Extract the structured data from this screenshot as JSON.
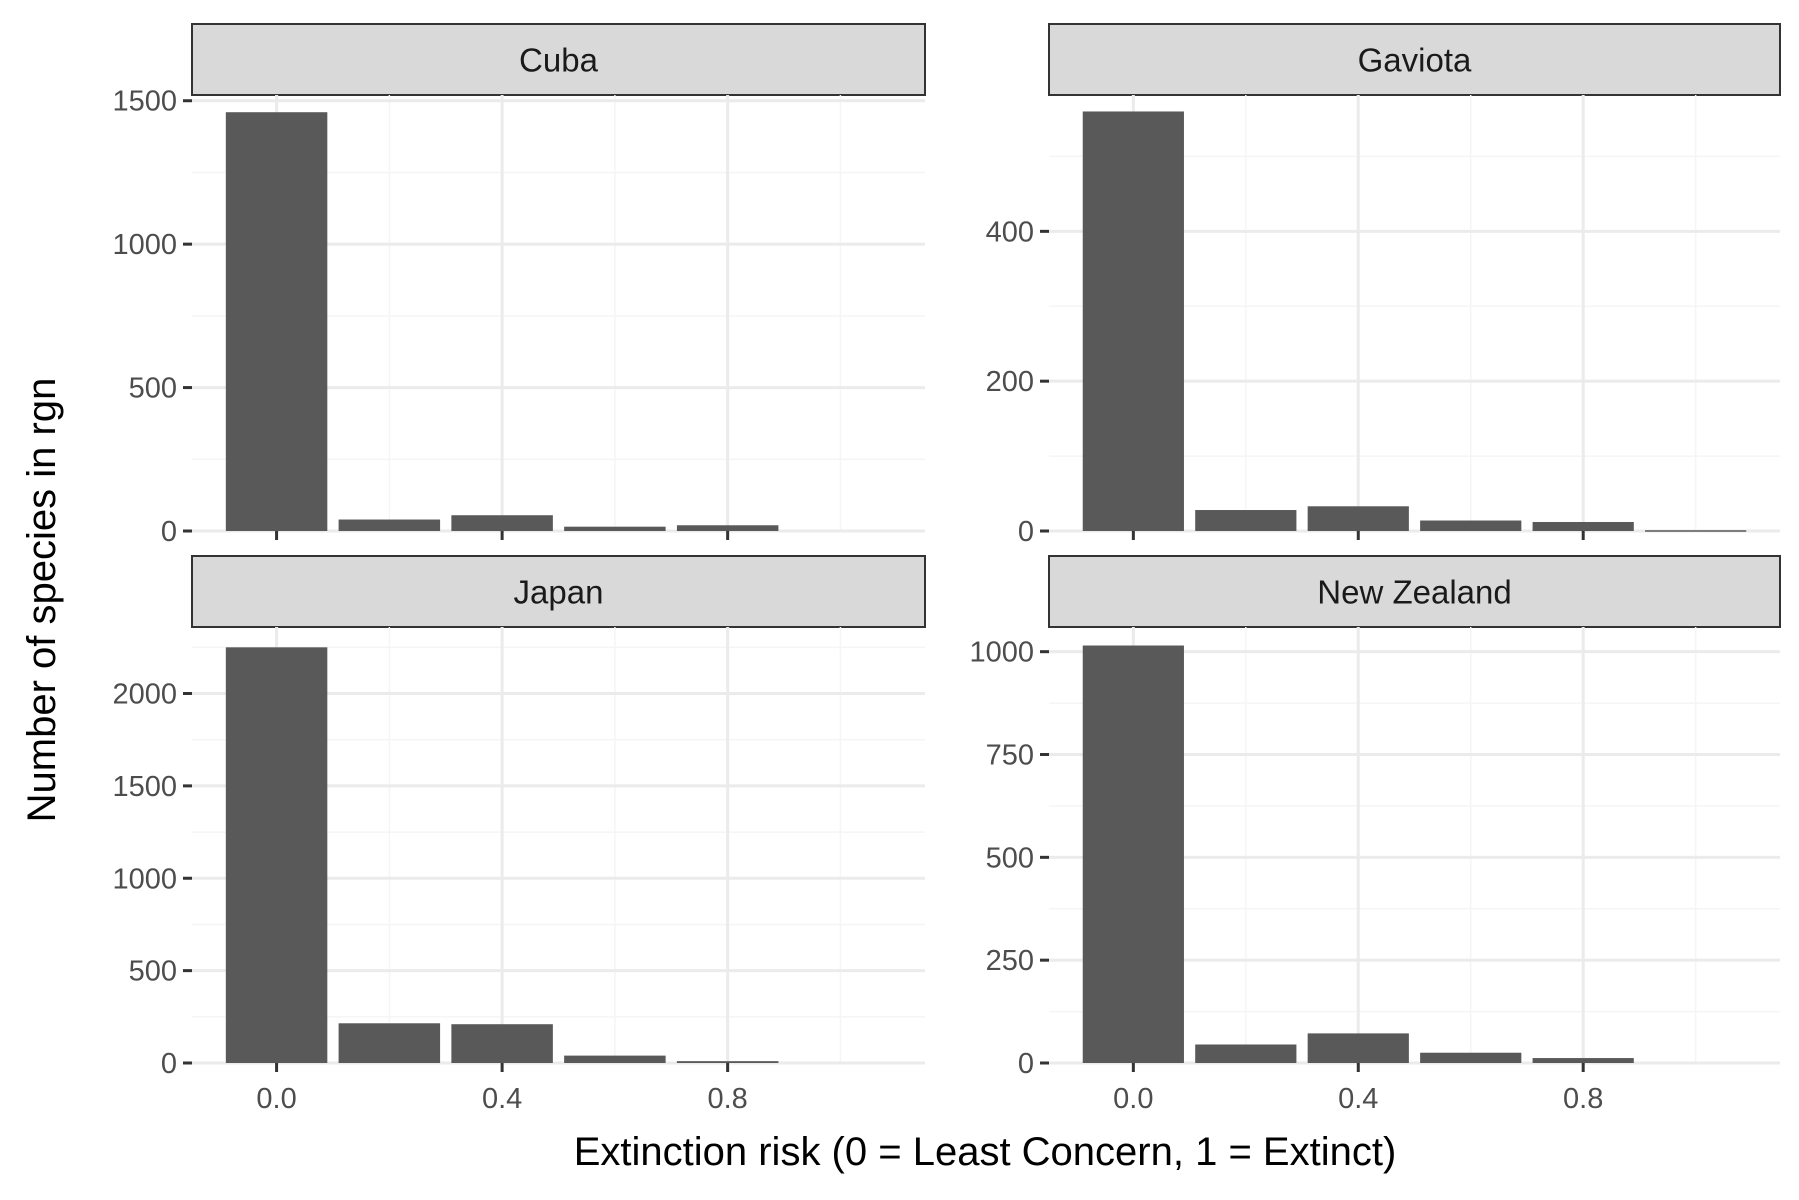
{
  "chart_data": {
    "type": "bar",
    "xlabel": "Extinction risk (0 = Least Concern, 1 = Extinct)",
    "ylabel": "Number of species in rgn",
    "x_ticks": [
      0.0,
      0.4,
      0.8
    ],
    "x_tick_labels": [
      "0.0",
      "0.4",
      "0.8"
    ],
    "xlim": [
      -0.15,
      1.15
    ],
    "bin_width": 0.18,
    "grid": true,
    "facets": [
      {
        "name": "Cuba",
        "x": [
          0.0,
          0.2,
          0.4,
          0.6,
          0.8,
          1.0
        ],
        "values": [
          1460,
          40,
          55,
          15,
          20,
          0
        ],
        "ylim": [
          0,
          1520
        ],
        "y_ticks": [
          0,
          500,
          1000,
          1500
        ],
        "y_tick_labels": [
          "0",
          "500",
          "1000",
          "1500"
        ]
      },
      {
        "name": "Gaviota",
        "x": [
          0.0,
          0.2,
          0.4,
          0.6,
          0.8,
          1.0
        ],
        "values": [
          560,
          28,
          33,
          14,
          12,
          1
        ],
        "ylim": [
          0,
          582
        ],
        "y_ticks": [
          0,
          200,
          400
        ],
        "y_tick_labels": [
          "0",
          "200",
          "400"
        ]
      },
      {
        "name": "Japan",
        "x": [
          0.0,
          0.2,
          0.4,
          0.6,
          0.8,
          1.0
        ],
        "values": [
          2250,
          215,
          210,
          40,
          10,
          0
        ],
        "ylim": [
          0,
          2360
        ],
        "y_ticks": [
          0,
          500,
          1000,
          1500,
          2000
        ],
        "y_tick_labels": [
          "0",
          "500",
          "1000",
          "1500",
          "2000"
        ]
      },
      {
        "name": "New Zealand",
        "x": [
          0.0,
          0.2,
          0.4,
          0.6,
          0.8,
          1.0
        ],
        "values": [
          1015,
          45,
          72,
          25,
          12,
          0
        ],
        "ylim": [
          0,
          1060
        ],
        "y_ticks": [
          0,
          250,
          500,
          750,
          1000
        ],
        "y_tick_labels": [
          "0",
          "250",
          "500",
          "750",
          "1000"
        ]
      }
    ],
    "colors": {
      "bar": "#595959",
      "strip_fill": "#d9d9d9",
      "strip_border": "#333333",
      "grid_major": "#ebebeb",
      "grid_minor": "#f5f5f5",
      "tick": "#333333",
      "tick_label": "#4d4d4d"
    }
  }
}
